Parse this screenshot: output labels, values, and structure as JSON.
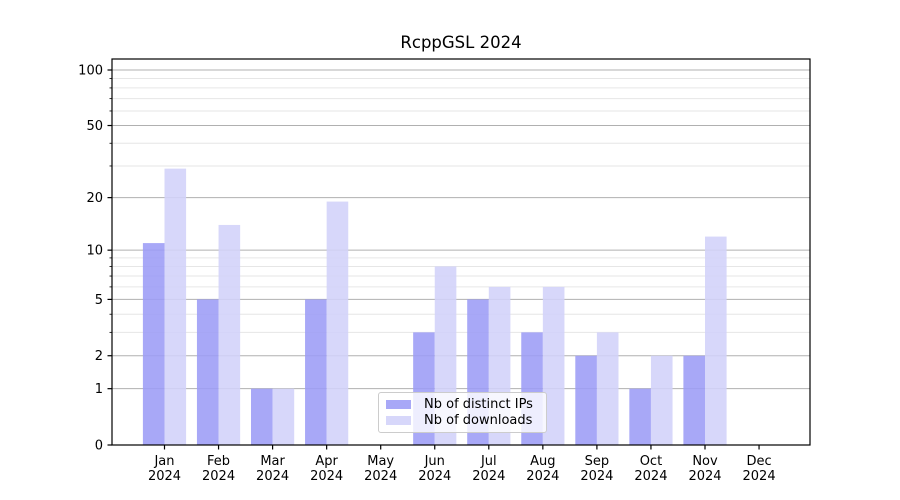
{
  "figure": {
    "background": "#ffffff"
  },
  "chart_data": {
    "type": "bar",
    "title": "RcppGSL 2024",
    "categories": [
      "Jan 2024",
      "Feb 2024",
      "Mar 2024",
      "Apr 2024",
      "May 2024",
      "Jun 2024",
      "Jul 2024",
      "Aug 2024",
      "Sep 2024",
      "Oct 2024",
      "Nov 2024",
      "Dec 2024"
    ],
    "series": [
      {
        "name": "Nb of distinct IPs",
        "color": "#9c9cf6",
        "opacity": 0.88,
        "values": [
          11,
          5,
          1,
          5,
          0,
          3,
          5,
          3,
          2,
          1,
          2,
          0
        ]
      },
      {
        "name": "Nb of downloads",
        "color": "#d2d2f9",
        "opacity": 0.88,
        "values": [
          29,
          14,
          1,
          19,
          0,
          8,
          6,
          6,
          3,
          2,
          12,
          0
        ]
      }
    ],
    "xlabel": "",
    "ylabel": "",
    "yscale": "log1p",
    "ylim": [
      0,
      115
    ],
    "yticks_major": [
      0,
      1,
      2,
      5,
      10,
      20,
      50,
      100
    ],
    "yticks_minor": [
      3,
      4,
      6,
      7,
      8,
      9,
      30,
      40,
      60,
      70,
      80,
      90
    ],
    "grid": true,
    "legend": {
      "location": "lower center",
      "entries": [
        "Nb of distinct IPs",
        "Nb of downloads"
      ]
    }
  },
  "style": {
    "grid_major_color": "#b0b0b0",
    "grid_minor_color": "#e6e6e6",
    "axis_color": "#000000",
    "tick_label_color": "#000000"
  }
}
